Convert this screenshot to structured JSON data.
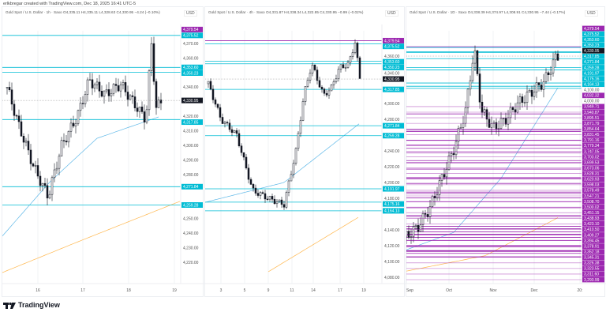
{
  "credit": "erlkbregar created with TradingView.com, Dec 18, 2025 16:41 UTC-5",
  "currency": "USD",
  "brand": "TradingView",
  "colors": {
    "cyan": "#00bcd4",
    "purple": "#9c27b0",
    "ma_blue": "#5fb8e8",
    "ma_orange": "#ffb74d",
    "up": "#131722",
    "last": "#131722"
  },
  "panels": [
    {
      "header": "Gold Spot / U.S. Dollar · 1h · Saxo  O4,335.11  H4,335.11  L4,328.63  C4,330.95  −4.24 (−0.10%)",
      "axis_ticks": [
        "4,370.00",
        "4,360.00",
        "4,340.00",
        "4,320.00",
        "4,310.00",
        "4,300.00",
        "4,290.00",
        "4,280.00",
        "4,250.00",
        "4,240.00",
        "4,230.00",
        "4,220.00"
      ],
      "last": "4,330.95",
      "levels": [
        {
          "p": "4,379.54",
          "c": "purple"
        },
        {
          "p": "4,375.52",
          "c": "cyan"
        },
        {
          "p": "4,353.60",
          "c": "cyan"
        },
        {
          "p": "4,350.23",
          "c": "cyan"
        },
        {
          "p": "4,317.85",
          "c": "cyan"
        },
        {
          "p": "4,271.84",
          "c": "cyan"
        },
        {
          "p": "4,259.28",
          "c": "cyan"
        }
      ],
      "x_labels": [
        "16",
        "17",
        "18",
        "19"
      ]
    },
    {
      "header": "Gold Spot / U.S. Dollar · 4h · Saxo  O4,331.87  H4,338.34  L4,322.85  C4,330.95  −0.99 (−0.02%)",
      "axis_ticks": [
        "4,360.00",
        "4,340.00",
        "4,300.00",
        "4,280.00",
        "4,240.00",
        "4,220.00",
        "4,200.00",
        "4,180.00",
        "4,140.00",
        "4,120.00",
        "4,100.00",
        "4,080.00"
      ],
      "last": "4,330.95",
      "levels": [
        {
          "p": "4,379.54",
          "c": "purple"
        },
        {
          "p": "4,375.52",
          "c": "cyan"
        },
        {
          "p": "4,353.60",
          "c": "cyan"
        },
        {
          "p": "4,350.23",
          "c": "cyan"
        },
        {
          "p": "4,317.85",
          "c": "cyan"
        },
        {
          "p": "4,271.84",
          "c": "cyan"
        },
        {
          "p": "4,259.28",
          "c": "cyan"
        },
        {
          "p": "4,191.97",
          "c": "cyan"
        },
        {
          "p": "4,175.16",
          "c": "cyan"
        },
        {
          "p": "4,164.13",
          "c": "cyan"
        }
      ],
      "x_labels": [
        "3",
        "5",
        "9",
        "11",
        "14",
        "17",
        "19"
      ]
    },
    {
      "header": "Gold Spot / U.S. Dollar · 1D · Saxo  O4,338.39  H4,374.97  L4,308.91  C4,330.95  −7.44 (−0.17%)",
      "axis_ticks": [
        "4,100.00",
        "4,000.00"
      ],
      "last": "4,330.95",
      "levels": [
        {
          "p": "4,379.54",
          "c": "purple"
        },
        {
          "p": "4,375.52",
          "c": "cyan"
        },
        {
          "p": "4,353.60",
          "c": "cyan"
        },
        {
          "p": "4,350.23",
          "c": "cyan"
        },
        {
          "p": "4,317.85",
          "c": "cyan"
        },
        {
          "p": "4,271.84",
          "c": "cyan"
        },
        {
          "p": "4,259.28",
          "c": "cyan"
        },
        {
          "p": "4,191.97",
          "c": "cyan"
        },
        {
          "p": "4,175.16",
          "c": "cyan"
        },
        {
          "p": "4,164.13",
          "c": "cyan"
        },
        {
          "p": "4,032.32",
          "c": "purple"
        },
        {
          "p": "3,949.71",
          "c": "purple"
        },
        {
          "p": "3,940.87",
          "c": "purple"
        },
        {
          "p": "3,895.51",
          "c": "purple"
        },
        {
          "p": "3,871.79",
          "c": "purple"
        },
        {
          "p": "3,854.64",
          "c": "purple"
        },
        {
          "p": "3,831.45",
          "c": "purple"
        },
        {
          "p": "3,791.16",
          "c": "purple"
        },
        {
          "p": "3,779.34",
          "c": "purple"
        },
        {
          "p": "3,747.05",
          "c": "purple"
        },
        {
          "p": "3,703.02",
          "c": "purple"
        },
        {
          "p": "3,699.53",
          "c": "purple"
        },
        {
          "p": "3,673.06",
          "c": "purple"
        },
        {
          "p": "3,628.31",
          "c": "purple"
        },
        {
          "p": "3,620.93",
          "c": "purple"
        },
        {
          "p": "3,598.03",
          "c": "purple"
        },
        {
          "p": "3,578.49",
          "c": "purple"
        },
        {
          "p": "3,547.21",
          "c": "purple"
        },
        {
          "p": "3,508.70",
          "c": "purple"
        },
        {
          "p": "3,500.02",
          "c": "purple"
        },
        {
          "p": "3,451.15",
          "c": "purple"
        },
        {
          "p": "3,438.93",
          "c": "purple"
        },
        {
          "p": "3,423.10",
          "c": "purple"
        },
        {
          "p": "3,410.50",
          "c": "purple"
        },
        {
          "p": "3,409.27",
          "c": "purple"
        },
        {
          "p": "3,394.45",
          "c": "purple"
        },
        {
          "p": "3,378.91",
          "c": "purple"
        },
        {
          "p": "3,352.18",
          "c": "purple"
        },
        {
          "p": "3,345.31",
          "c": "purple"
        },
        {
          "p": "3,326.38",
          "c": "purple"
        },
        {
          "p": "3,323.55",
          "c": "purple"
        },
        {
          "p": "3,311.60",
          "c": "purple"
        },
        {
          "p": "3,293.99",
          "c": "purple"
        }
      ],
      "x_labels": [
        "Sep",
        "Oct",
        "Nov",
        "Dec",
        "20:"
      ]
    }
  ]
}
